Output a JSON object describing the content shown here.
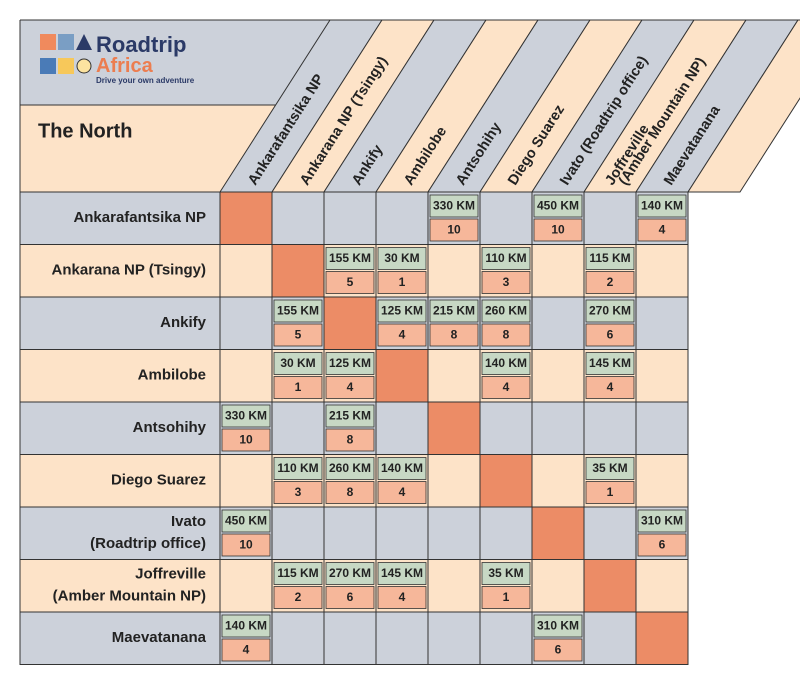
{
  "logo": {
    "brand": "Roadtrip",
    "brand2": "Africa",
    "tagline": "Drive your own adventure"
  },
  "title": "The North",
  "columns": [
    [
      "Ankarafantsika NP"
    ],
    [
      "Ankarana NP (Tsingy)"
    ],
    [
      "Ankify"
    ],
    [
      "Ambilobe"
    ],
    [
      "Antsohihy"
    ],
    [
      "Diego Suarez"
    ],
    [
      "Ivato (Roadtrip office)"
    ],
    [
      "Joffreville",
      "(Amber Mountain NP)"
    ],
    [
      "Maevatanana"
    ]
  ],
  "rows": [
    {
      "label": [
        "Ankarafantsika NP"
      ],
      "cells": [
        null,
        null,
        null,
        null,
        [
          "330 KM",
          "10"
        ],
        null,
        [
          "450 KM",
          "10"
        ],
        null,
        [
          "140 KM",
          "4"
        ]
      ]
    },
    {
      "label": [
        "Ankarana NP (Tsingy)"
      ],
      "cells": [
        null,
        null,
        [
          "155 KM",
          "5"
        ],
        [
          "30 KM",
          "1"
        ],
        null,
        [
          "110 KM",
          "3"
        ],
        null,
        [
          "115 KM",
          "2"
        ],
        null
      ]
    },
    {
      "label": [
        "Ankify"
      ],
      "cells": [
        null,
        [
          "155 KM",
          "5"
        ],
        null,
        [
          "125 KM",
          "4"
        ],
        [
          "215 KM",
          "8"
        ],
        [
          "260 KM",
          "8"
        ],
        null,
        [
          "270 KM",
          "6"
        ],
        null
      ]
    },
    {
      "label": [
        "Ambilobe"
      ],
      "cells": [
        null,
        [
          "30 KM",
          "1"
        ],
        [
          "125 KM",
          "4"
        ],
        null,
        null,
        [
          "140 KM",
          "4"
        ],
        null,
        [
          "145 KM",
          "4"
        ],
        null
      ]
    },
    {
      "label": [
        "Antsohihy"
      ],
      "cells": [
        [
          "330 KM",
          "10"
        ],
        null,
        [
          "215 KM",
          "8"
        ],
        null,
        null,
        null,
        null,
        null,
        null
      ]
    },
    {
      "label": [
        "Diego Suarez"
      ],
      "cells": [
        null,
        [
          "110 KM",
          "3"
        ],
        [
          "260 KM",
          "8"
        ],
        [
          "140 KM",
          "4"
        ],
        null,
        null,
        null,
        [
          "35 KM",
          "1"
        ],
        null
      ]
    },
    {
      "label": [
        "Ivato",
        "(Roadtrip office)"
      ],
      "cells": [
        [
          "450 KM",
          "10"
        ],
        null,
        null,
        null,
        null,
        null,
        null,
        null,
        [
          "310 KM",
          "6"
        ]
      ]
    },
    {
      "label": [
        "Joffreville",
        "(Amber Mountain NP)"
      ],
      "cells": [
        null,
        [
          "115 KM",
          "2"
        ],
        [
          "270 KM",
          "6"
        ],
        [
          "145 KM",
          "4"
        ],
        null,
        [
          "35 KM",
          "1"
        ],
        null,
        null,
        null
      ]
    },
    {
      "label": [
        "Maevatanana"
      ],
      "cells": [
        [
          "140 KM",
          "4"
        ],
        null,
        null,
        null,
        null,
        null,
        [
          "310 KM",
          "6"
        ],
        null,
        null
      ]
    }
  ]
}
